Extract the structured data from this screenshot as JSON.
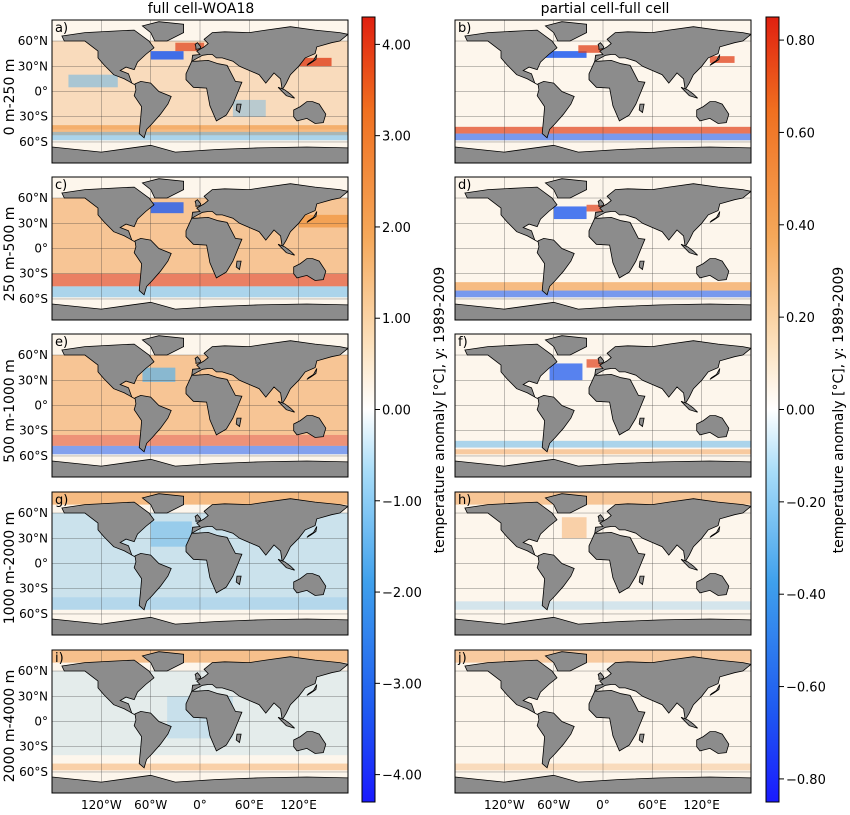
{
  "columns": [
    {
      "title": "full cell-WOA18"
    },
    {
      "title": "partial cell-full cell"
    }
  ],
  "rows": [
    {
      "depth_label": "0 m-250 m"
    },
    {
      "depth_label": "250 m-500 m"
    },
    {
      "depth_label": "500 m-1000 m"
    },
    {
      "depth_label": "1000 m-2000 m"
    },
    {
      "depth_label": "2000 m-4000 m"
    }
  ],
  "panel_letters": [
    "a)",
    "b)",
    "c)",
    "d)",
    "e)",
    "f)",
    "g)",
    "h)",
    "i)",
    "j)"
  ],
  "lat_ticks": [
    "60°N",
    "30°N",
    "0°",
    "30°S",
    "60°S"
  ],
  "lon_ticks": [
    "120°W",
    "60°W",
    "0°",
    "60°E",
    "120°E"
  ],
  "colorbars": [
    {
      "label": "temperature anomaly  [°C], y: 1989-2009",
      "ticks": [
        "4.00",
        "3.00",
        "2.00",
        "1.00",
        "0.00",
        "−1.00",
        "−2.00",
        "−3.00",
        "−4.00"
      ],
      "range": [
        -4.3,
        4.3
      ]
    },
    {
      "label": "temperature anomaly  [°C], y: 1989-2009",
      "ticks": [
        "0.80",
        "0.60",
        "0.40",
        "0.20",
        "0.00",
        "−0.20",
        "−0.40",
        "−0.60",
        "−0.80"
      ],
      "range": [
        -0.85,
        0.85
      ]
    }
  ],
  "colors": {
    "land": "#8c8c8c",
    "ocean_neutral": "#fdf6ec",
    "warm": "#f08a2c",
    "warm_strong": "#e0401a",
    "cool": "#5ab2ea",
    "cool_strong": "#1f5bf0"
  }
}
